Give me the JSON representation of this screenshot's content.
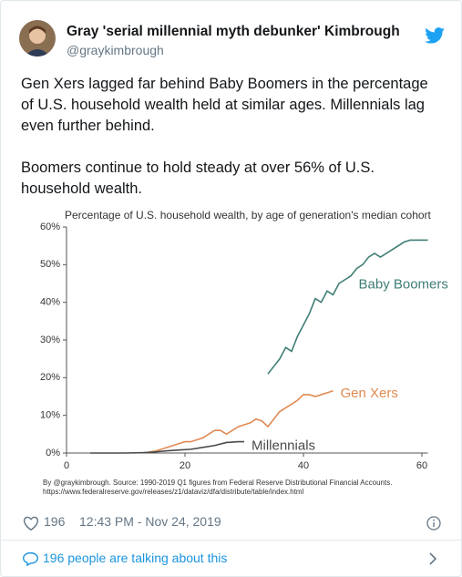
{
  "tweet": {
    "name": "Gray 'serial millennial myth debunker' Kimbrough",
    "handle": "@graykimbrough",
    "paragraphs": [
      "Gen Xers lagged far behind Baby Boomers in the percentage of U.S. household wealth held at similar ages. Millennials lag even further behind.",
      "Boomers continue to hold steady at over 56% of U.S. household wealth."
    ],
    "likes": 196,
    "timestamp": "12:43 PM - Nov 24, 2019",
    "talking": "196 people are talking about this"
  },
  "chart_data": {
    "type": "line",
    "title": "Percentage of U.S. household wealth, by age of generation's median cohort",
    "source": [
      "By @graykimbrough. Source: 1990-2019 Q1 figures from Federal Reserve Distributional Financial Accounts.",
      "https://www.federalreserve.gov/releases/z1/dataviz/dfa/distribute/table/index.html"
    ],
    "xlim": [
      0,
      61
    ],
    "xticks": [
      0,
      20,
      40,
      60
    ],
    "ylim": [
      0,
      60
    ],
    "yticks": [
      {
        "value": 0,
        "label": "0%"
      },
      {
        "value": 10,
        "label": "10%"
      },
      {
        "value": 20,
        "label": "20%"
      },
      {
        "value": 30,
        "label": "30%"
      },
      {
        "value": 40,
        "label": "40%"
      },
      {
        "value": 50,
        "label": "50%"
      },
      {
        "value": 60,
        "label": "60%"
      }
    ],
    "grid": false,
    "series": [
      {
        "name": "Baby Boomers",
        "color": "#3f7e75",
        "x": [
          34,
          35,
          36,
          37,
          38,
          39,
          40,
          41,
          42,
          43,
          44,
          45,
          46,
          47,
          48,
          49,
          50,
          51,
          52,
          53,
          54,
          55,
          56,
          57,
          58,
          59,
          60,
          61
        ],
        "values": [
          21,
          23,
          25,
          28,
          27,
          31,
          34,
          37,
          41,
          40,
          43,
          42,
          45,
          46,
          47,
          49,
          50,
          52,
          53,
          52,
          53,
          54,
          55,
          56,
          56.5,
          56.5,
          56.5,
          56.5
        ]
      },
      {
        "name": "Gen Xers",
        "color": "#e08a52",
        "x": [
          14,
          15,
          16,
          17,
          18,
          19,
          20,
          21,
          22,
          23,
          24,
          25,
          26,
          27,
          28,
          29,
          30,
          31,
          32,
          33,
          34,
          35,
          36,
          37,
          38,
          39,
          40,
          41,
          42,
          43,
          44,
          45
        ],
        "values": [
          0.3,
          0.5,
          1,
          1.5,
          2,
          2.5,
          3,
          3,
          3.5,
          4,
          5,
          6,
          6,
          5,
          6,
          7,
          7.5,
          8,
          9,
          8.5,
          7,
          9,
          11,
          12,
          13,
          14,
          15.5,
          15.5,
          15,
          15.5,
          16,
          16.5
        ]
      },
      {
        "name": "Millennials",
        "color": "#4a4a4a",
        "x": [
          4,
          10,
          13,
          15,
          17,
          19,
          21,
          23,
          25,
          27,
          29,
          30
        ],
        "values": [
          0,
          0,
          0.1,
          0.3,
          0.6,
          0.8,
          1,
          1.5,
          2,
          2.8,
          3,
          3
        ]
      }
    ]
  }
}
